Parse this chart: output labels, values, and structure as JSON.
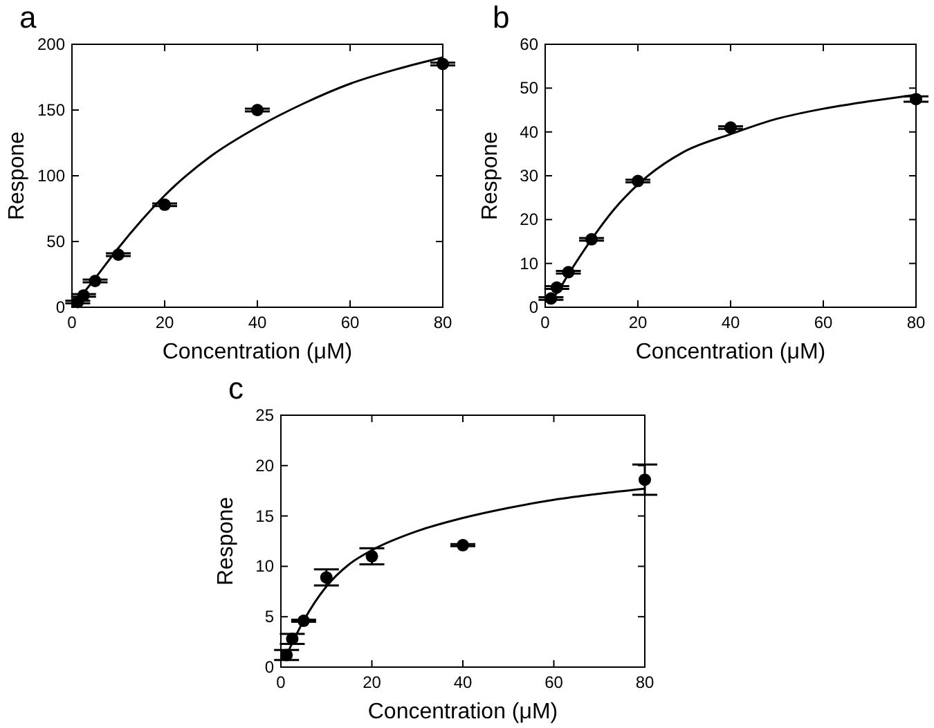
{
  "chart_data": [
    {
      "type": "scatter",
      "title": "a",
      "xlabel": "Concentration (μM)",
      "ylabel": "Respone",
      "xlim": [
        0,
        80
      ],
      "xticks": [
        0,
        20,
        40,
        60,
        80
      ],
      "ylim": [
        0,
        200
      ],
      "yticks": [
        0,
        50,
        100,
        150,
        200
      ],
      "grid": false,
      "series": [
        {
          "color": "#000000",
          "marker": "circle",
          "x": [
            1.25,
            2.5,
            5,
            10,
            20,
            40,
            80
          ],
          "values": [
            4,
            9,
            20,
            40,
            78,
            150,
            185
          ],
          "errors": [
            1,
            1,
            1,
            1,
            1,
            1,
            1
          ]
        },
        {
          "type": "line",
          "color": "#000000",
          "marker": "none",
          "line_style": "solid",
          "x": [
            0,
            5,
            10,
            15,
            20,
            30,
            40,
            50,
            60,
            70,
            80
          ],
          "values": [
            0,
            22,
            45,
            66,
            85,
            115,
            137,
            155,
            170,
            181,
            190
          ]
        }
      ]
    },
    {
      "type": "scatter",
      "title": "b",
      "xlabel": "Concentration (μM)",
      "ylabel": "Respone",
      "xlim": [
        0,
        80
      ],
      "xticks": [
        0,
        20,
        40,
        60,
        80
      ],
      "ylim": [
        0,
        60
      ],
      "yticks": [
        0,
        10,
        20,
        30,
        40,
        50,
        60
      ],
      "grid": false,
      "series": [
        {
          "color": "#000000",
          "marker": "circle",
          "x": [
            1.25,
            2.5,
            5,
            10,
            20,
            40,
            80
          ],
          "values": [
            2,
            4.5,
            8,
            15.5,
            28.8,
            41,
            47.5
          ],
          "errors": [
            0.3,
            0.3,
            0.3,
            0.3,
            0.3,
            0.3,
            0.6
          ]
        },
        {
          "type": "line",
          "color": "#000000",
          "marker": "none",
          "line_style": "solid",
          "x": [
            1.25,
            2.5,
            5,
            10,
            15,
            20,
            30,
            40,
            50,
            60,
            70,
            80
          ],
          "values": [
            1.5,
            3.2,
            7.5,
            15.5,
            22.5,
            28,
            35.5,
            39.5,
            43,
            45.3,
            47,
            48.5
          ]
        }
      ]
    },
    {
      "type": "scatter",
      "title": "c",
      "xlabel": "Concentration (μM)",
      "ylabel": "Respone",
      "xlim": [
        0,
        80
      ],
      "xticks": [
        0,
        20,
        40,
        60,
        80
      ],
      "ylim": [
        0,
        25
      ],
      "yticks": [
        0,
        5,
        10,
        15,
        20,
        25
      ],
      "grid": false,
      "series": [
        {
          "color": "#000000",
          "marker": "circle",
          "x": [
            1.25,
            2.5,
            5,
            10,
            20,
            40,
            80
          ],
          "values": [
            1.2,
            2.8,
            4.6,
            8.9,
            11,
            12.1,
            18.6
          ],
          "errors": [
            0.5,
            0.5,
            0.1,
            0.8,
            0.8,
            0.1,
            1.5
          ]
        },
        {
          "type": "line",
          "color": "#000000",
          "marker": "none",
          "line_style": "solid",
          "x": [
            1.25,
            2.5,
            5,
            10,
            15,
            20,
            30,
            40,
            50,
            60,
            70,
            80
          ],
          "values": [
            1.2,
            2.4,
            4.6,
            8,
            10.2,
            11.6,
            13.5,
            14.8,
            15.8,
            16.6,
            17.2,
            17.7
          ]
        }
      ]
    }
  ]
}
